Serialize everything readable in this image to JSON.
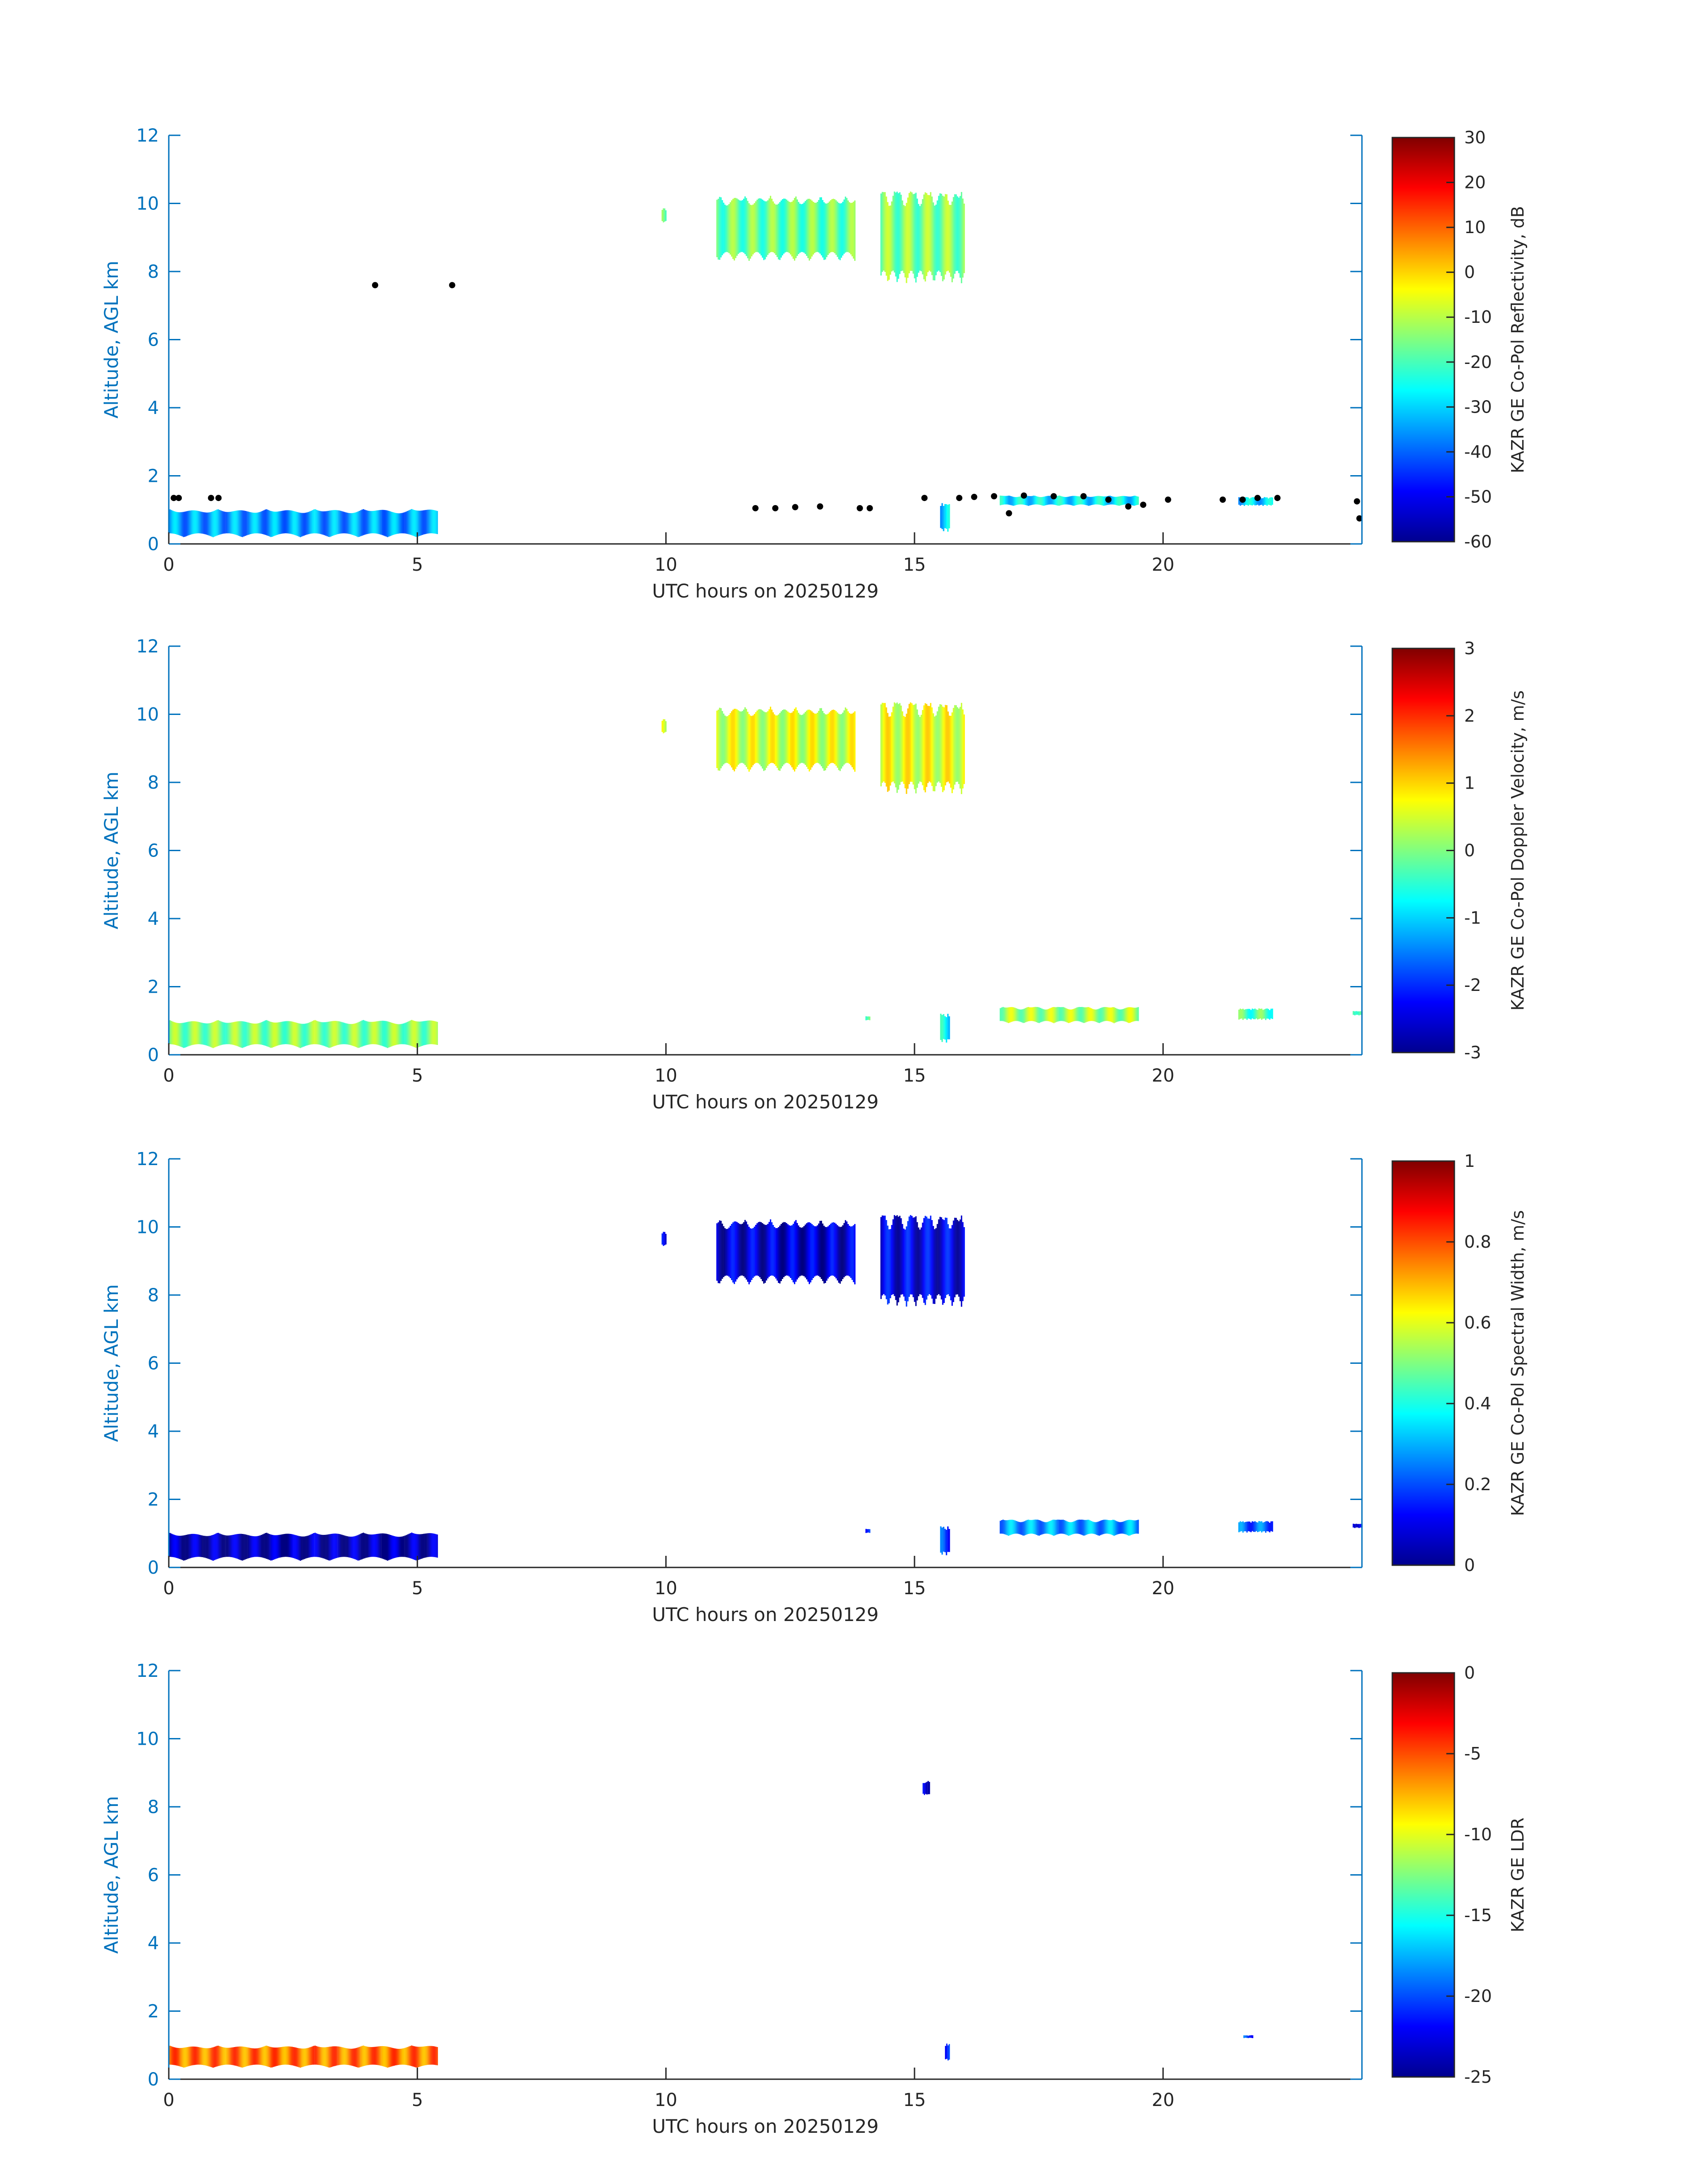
{
  "figure": {
    "xlabel": "UTC hours on 20250129",
    "ylabel": "Altitude, AGL km"
  },
  "chart_data": [
    {
      "type": "heatmap",
      "xlabel": "UTC hours on 20250129",
      "ylabel": "Altitude, AGL km",
      "xlim": [
        0,
        24
      ],
      "ylim": [
        0,
        12
      ],
      "xticks": [
        0,
        5,
        10,
        15,
        20
      ],
      "yticks": [
        0,
        2,
        4,
        6,
        8,
        10,
        12
      ],
      "colorbar": {
        "label": "KAZR GE Co-Pol Reflectivity, dB",
        "range": [
          -60,
          30
        ],
        "ticks": [
          30,
          20,
          10,
          0,
          -10,
          -20,
          -30,
          -40,
          -50,
          -60
        ]
      },
      "regions": [
        {
          "t0": 0.0,
          "t1": 5.4,
          "z0": 0.15,
          "z1": 1.1,
          "value": -35
        },
        {
          "t0": 11.0,
          "t1": 13.8,
          "z0": 8.2,
          "z1": 10.4,
          "value": -17
        },
        {
          "t0": 14.3,
          "t1": 16.0,
          "z0": 7.5,
          "z1": 10.6,
          "value": -15
        },
        {
          "t0": 9.9,
          "t1": 10.0,
          "z0": 9.4,
          "z1": 9.9,
          "value": -18
        },
        {
          "t0": 15.5,
          "t1": 15.7,
          "z0": 0.3,
          "z1": 1.3,
          "value": -30
        },
        {
          "t0": 16.7,
          "t1": 19.5,
          "z0": 1.1,
          "z1": 1.45,
          "value": -28
        },
        {
          "t0": 21.5,
          "t1": 22.2,
          "z0": 1.1,
          "z1": 1.4,
          "value": -30
        }
      ],
      "black_points": [
        {
          "t": 4.15,
          "z": 7.6
        },
        {
          "t": 5.7,
          "z": 7.6
        },
        {
          "t": 0.1,
          "z": 1.35
        },
        {
          "t": 0.2,
          "z": 1.35
        },
        {
          "t": 0.85,
          "z": 1.35
        },
        {
          "t": 1.0,
          "z": 1.35
        },
        {
          "t": 11.8,
          "z": 1.05
        },
        {
          "t": 12.2,
          "z": 1.05
        },
        {
          "t": 12.6,
          "z": 1.08
        },
        {
          "t": 13.1,
          "z": 1.1
        },
        {
          "t": 13.9,
          "z": 1.05
        },
        {
          "t": 14.1,
          "z": 1.05
        },
        {
          "t": 15.2,
          "z": 1.35
        },
        {
          "t": 15.9,
          "z": 1.35
        },
        {
          "t": 16.2,
          "z": 1.38
        },
        {
          "t": 16.6,
          "z": 1.4
        },
        {
          "t": 16.9,
          "z": 0.9
        },
        {
          "t": 17.2,
          "z": 1.42
        },
        {
          "t": 17.8,
          "z": 1.4
        },
        {
          "t": 18.4,
          "z": 1.4
        },
        {
          "t": 18.9,
          "z": 1.3
        },
        {
          "t": 19.3,
          "z": 1.1
        },
        {
          "t": 19.6,
          "z": 1.15
        },
        {
          "t": 20.1,
          "z": 1.3
        },
        {
          "t": 21.2,
          "z": 1.3
        },
        {
          "t": 21.6,
          "z": 1.3
        },
        {
          "t": 21.9,
          "z": 1.35
        },
        {
          "t": 22.3,
          "z": 1.35
        },
        {
          "t": 23.9,
          "z": 1.25
        },
        {
          "t": 23.95,
          "z": 0.75
        }
      ]
    },
    {
      "type": "heatmap",
      "xlabel": "UTC hours on 20250129",
      "ylabel": "Altitude, AGL km",
      "xlim": [
        0,
        24
      ],
      "ylim": [
        0,
        12
      ],
      "xticks": [
        0,
        5,
        10,
        15,
        20
      ],
      "yticks": [
        0,
        2,
        4,
        6,
        8,
        10,
        12
      ],
      "colorbar": {
        "label": "KAZR GE Co-Pol Doppler Velocity, m/s",
        "range": [
          -3,
          3
        ],
        "ticks": [
          3,
          2,
          1,
          0,
          -1,
          -2,
          -3
        ]
      },
      "regions": [
        {
          "t0": 0.0,
          "t1": 5.4,
          "z0": 0.15,
          "z1": 1.1,
          "value": 0.0
        },
        {
          "t0": 11.0,
          "t1": 13.8,
          "z0": 8.2,
          "z1": 10.4,
          "value": 0.5
        },
        {
          "t0": 14.3,
          "t1": 16.0,
          "z0": 7.5,
          "z1": 10.6,
          "value": 0.6
        },
        {
          "t0": 9.9,
          "t1": 10.0,
          "z0": 9.4,
          "z1": 9.9,
          "value": 0.4
        },
        {
          "t0": 14.0,
          "t1": 14.1,
          "z0": 1.0,
          "z1": 1.15,
          "value": 0.0
        },
        {
          "t0": 15.5,
          "t1": 15.7,
          "z0": 0.3,
          "z1": 1.3,
          "value": -0.8
        },
        {
          "t0": 16.7,
          "t1": 19.5,
          "z0": 0.9,
          "z1": 1.45,
          "value": 0.2
        },
        {
          "t0": 21.5,
          "t1": 22.2,
          "z0": 1.0,
          "z1": 1.4,
          "value": -0.3
        },
        {
          "t0": 23.8,
          "t1": 24.0,
          "z0": 1.15,
          "z1": 1.3,
          "value": 0.0
        }
      ],
      "black_points": []
    },
    {
      "type": "heatmap",
      "xlabel": "UTC hours on 20250129",
      "ylabel": "Altitude, AGL km",
      "xlim": [
        0,
        24
      ],
      "ylim": [
        0,
        12
      ],
      "xticks": [
        0,
        5,
        10,
        15,
        20
      ],
      "yticks": [
        0,
        2,
        4,
        6,
        8,
        10,
        12
      ],
      "colorbar": {
        "label": "KAZR GE Co-Pol Spectral Width, m/s",
        "range": [
          0,
          1
        ],
        "ticks": [
          1,
          0.8,
          0.6,
          0.4,
          0.2,
          0
        ]
      },
      "regions": [
        {
          "t0": 0.0,
          "t1": 5.4,
          "z0": 0.15,
          "z1": 1.1,
          "value": 0.05
        },
        {
          "t0": 11.0,
          "t1": 13.8,
          "z0": 8.2,
          "z1": 10.4,
          "value": 0.08
        },
        {
          "t0": 14.3,
          "t1": 16.0,
          "z0": 7.5,
          "z1": 10.6,
          "value": 0.1
        },
        {
          "t0": 9.9,
          "t1": 10.0,
          "z0": 9.4,
          "z1": 9.9,
          "value": 0.1
        },
        {
          "t0": 14.0,
          "t1": 14.1,
          "z0": 1.0,
          "z1": 1.15,
          "value": 0.2
        },
        {
          "t0": 15.5,
          "t1": 15.7,
          "z0": 0.3,
          "z1": 1.3,
          "value": 0.18
        },
        {
          "t0": 16.7,
          "t1": 19.5,
          "z0": 0.9,
          "z1": 1.45,
          "value": 0.28
        },
        {
          "t0": 21.5,
          "t1": 22.2,
          "z0": 1.0,
          "z1": 1.4,
          "value": 0.22
        },
        {
          "t0": 23.8,
          "t1": 24.0,
          "z0": 1.15,
          "z1": 1.3,
          "value": 0.15
        }
      ],
      "black_points": []
    },
    {
      "type": "heatmap",
      "xlabel": "UTC hours on 20250129",
      "ylabel": "Altitude, AGL km",
      "xlim": [
        0,
        24
      ],
      "ylim": [
        0,
        12
      ],
      "xticks": [
        0,
        5,
        10,
        15,
        20
      ],
      "yticks": [
        0,
        2,
        4,
        6,
        8,
        10,
        12
      ],
      "colorbar": {
        "label": "KAZR GE LDR",
        "range": [
          -25,
          0
        ],
        "ticks": [
          0,
          -5,
          -10,
          -15,
          -20,
          -25
        ]
      },
      "regions": [
        {
          "t0": 0.0,
          "t1": 5.4,
          "z0": 0.3,
          "z1": 1.05,
          "value": -6
        },
        {
          "t0": 15.15,
          "t1": 15.3,
          "z0": 8.3,
          "z1": 8.8,
          "value": -22
        },
        {
          "t0": 15.6,
          "t1": 15.7,
          "z0": 0.5,
          "z1": 1.1,
          "value": -21
        },
        {
          "t0": 21.6,
          "t1": 21.8,
          "z0": 1.2,
          "z1": 1.3,
          "value": -20
        }
      ],
      "black_points": []
    }
  ]
}
